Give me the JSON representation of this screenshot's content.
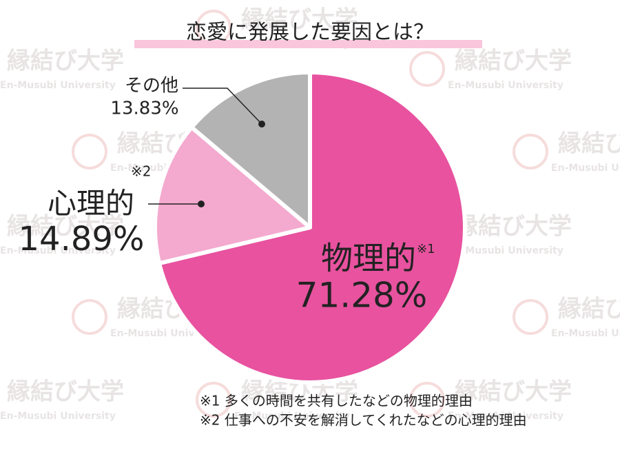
{
  "chart_data": {
    "type": "pie",
    "title": "恋愛に発展した要因とは？",
    "categories": [
      "物理的",
      "心理的",
      "その他"
    ],
    "category_marks": [
      "※1",
      "※2",
      null
    ],
    "values": [
      71.28,
      14.89,
      13.83
    ],
    "value_labels": [
      "71.28%",
      "14.89%",
      "13.83%"
    ],
    "colors": [
      "#e8529f",
      "#f4a9cf",
      "#b3b3b3"
    ],
    "footnotes": [
      "※1 多くの時間を共有したなどの物理的理由",
      "※2 仕事への不安を解消してくれたなどの心理的理由"
    ],
    "watermark": {
      "text": "縁結び大学",
      "subtext": "En-Musubi University"
    }
  }
}
